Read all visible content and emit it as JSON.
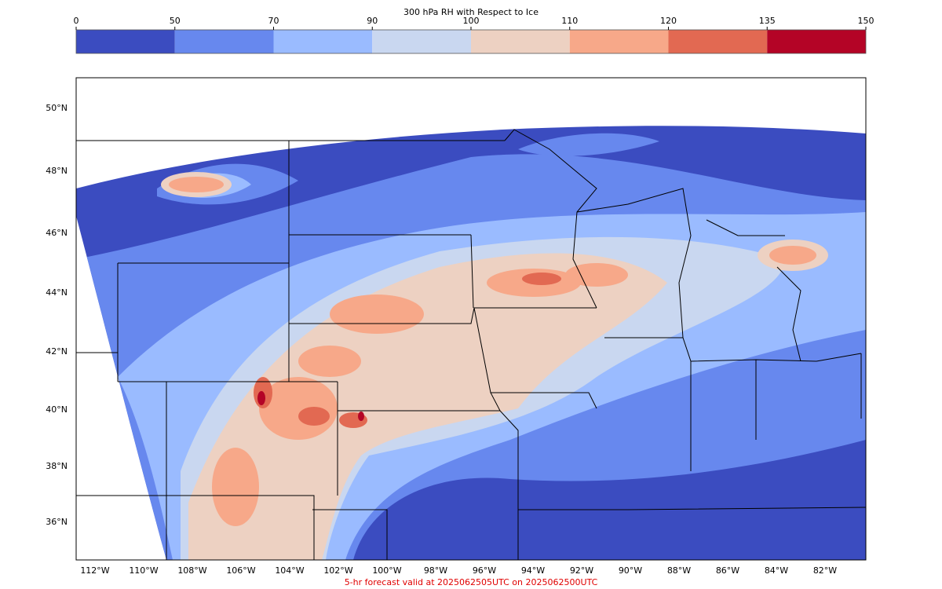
{
  "title": "300 hPa RH with Respect to Ice",
  "colorbar": {
    "ticks": [
      0,
      50,
      70,
      90,
      100,
      110,
      120,
      135,
      150
    ],
    "colors": [
      "#3b4cc0",
      "#6788ee",
      "#9abbff",
      "#c9d7f0",
      "#edd1c2",
      "#f7a889",
      "#e26952",
      "#b40426"
    ]
  },
  "latitude_labels": [
    "50°N",
    "48°N",
    "46°N",
    "44°N",
    "42°N",
    "40°N",
    "38°N",
    "36°N"
  ],
  "longitude_labels": [
    "112°W",
    "110°W",
    "108°W",
    "106°W",
    "104°W",
    "102°W",
    "100°W",
    "98°W",
    "96°W",
    "94°W",
    "92°W",
    "90°W",
    "88°W",
    "86°W",
    "84°W",
    "82°W"
  ],
  "footer": "5-hr forecast valid at 2025062505UTC on 2025062500UTC"
}
